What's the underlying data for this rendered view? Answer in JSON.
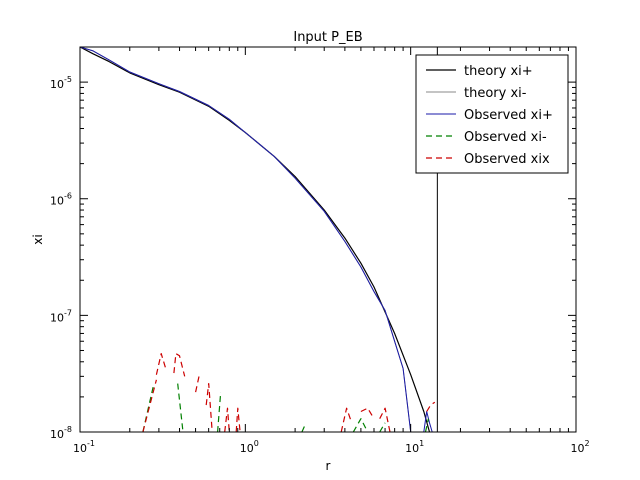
{
  "chart_data": {
    "type": "line",
    "title": "Input P_EB",
    "xlabel": "r",
    "ylabel": "xi",
    "xscale": "log",
    "yscale": "log",
    "xlim": [
      0.1,
      100
    ],
    "ylim": [
      1e-08,
      2e-05
    ],
    "grid": false,
    "legend_position": "top-right",
    "x_ticks": [
      {
        "base": "10",
        "exp": "-1",
        "value": 0.1
      },
      {
        "base": "10",
        "exp": "0",
        "value": 1
      },
      {
        "base": "10",
        "exp": "1",
        "value": 10
      },
      {
        "base": "10",
        "exp": "2",
        "value": 100
      }
    ],
    "y_ticks": [
      {
        "base": "10",
        "exp": "-8",
        "value": 1e-08
      },
      {
        "base": "10",
        "exp": "-7",
        "value": 1e-07
      },
      {
        "base": "10",
        "exp": "-6",
        "value": 1e-06
      },
      {
        "base": "10",
        "exp": "-5",
        "value": 1e-05
      }
    ],
    "vertical_line": {
      "x": 14.5,
      "color": "#000000"
    },
    "series": [
      {
        "name": "theory xi+",
        "color": "#000000",
        "style": "solid",
        "width": 1.2,
        "segments": [
          [
            [
              0.1,
              2e-05
            ],
            [
              0.12,
              1.75e-05
            ],
            [
              0.15,
              1.5e-05
            ],
            [
              0.2,
              1.2e-05
            ],
            [
              0.3,
              9.5e-06
            ],
            [
              0.4,
              8.2e-06
            ],
            [
              0.6,
              6.2e-06
            ],
            [
              0.8,
              4.7e-06
            ],
            [
              1.0,
              3.7e-06
            ],
            [
              1.5,
              2.3e-06
            ],
            [
              2.0,
              1.55e-06
            ],
            [
              3.0,
              8e-07
            ],
            [
              4.0,
              4.6e-07
            ],
            [
              5.0,
              2.8e-07
            ],
            [
              6.0,
              1.75e-07
            ],
            [
              8.0,
              7e-08
            ],
            [
              10.0,
              3.1e-08
            ],
            [
              12.0,
              1.5e-08
            ],
            [
              13.0,
              1e-08
            ]
          ]
        ]
      },
      {
        "name": "theory xi-",
        "color": "#888888",
        "style": "solid",
        "width": 1.0,
        "segments": [
          [
            [
              0.1,
              2e-05
            ],
            [
              0.12,
              1.85e-05
            ],
            [
              0.15,
              1.55e-05
            ],
            [
              0.2,
              1.22e-05
            ],
            [
              0.3,
              9.7e-06
            ],
            [
              0.4,
              8.3e-06
            ],
            [
              0.6,
              6.3e-06
            ],
            [
              0.8,
              4.8e-06
            ],
            [
              1.0,
              3.7e-06
            ],
            [
              1.5,
              2.3e-06
            ],
            [
              2.0,
              1.5e-06
            ],
            [
              3.0,
              7.8e-07
            ],
            [
              4.0,
              4.3e-07
            ],
            [
              5.0,
              2.6e-07
            ],
            [
              6.0,
              1.6e-07
            ],
            [
              7.0,
              1.1e-07
            ],
            [
              8.0,
              6e-08
            ],
            [
              9.0,
              3.5e-08
            ],
            [
              10.0,
              1e-08
            ]
          ]
        ]
      },
      {
        "name": "Observed xi+",
        "color": "#1a1aa8",
        "style": "solid",
        "width": 1.0,
        "segments": [
          [
            [
              0.1,
              2e-05
            ],
            [
              0.12,
              1.85e-05
            ],
            [
              0.15,
              1.55e-05
            ],
            [
              0.2,
              1.22e-05
            ],
            [
              0.3,
              9.7e-06
            ],
            [
              0.4,
              8.3e-06
            ],
            [
              0.6,
              6.3e-06
            ],
            [
              0.8,
              4.8e-06
            ],
            [
              1.0,
              3.7e-06
            ],
            [
              1.5,
              2.3e-06
            ],
            [
              2.0,
              1.5e-06
            ],
            [
              3.0,
              7.8e-07
            ],
            [
              4.0,
              4.3e-07
            ],
            [
              5.0,
              2.6e-07
            ],
            [
              6.0,
              1.6e-07
            ],
            [
              7.0,
              1.1e-07
            ],
            [
              8.0,
              6e-08
            ],
            [
              9.0,
              3.5e-08
            ],
            [
              10.0,
              1e-08
            ]
          ],
          [
            [
              12.0,
              1e-08
            ],
            [
              12.5,
              1.5e-08
            ],
            [
              13.0,
              1.2e-08
            ],
            [
              13.5,
              1e-08
            ]
          ]
        ]
      },
      {
        "name": "Observed xi-",
        "color": "#008000",
        "style": "dashed",
        "width": 1.2,
        "segments": [
          [
            [
              0.24,
              1e-08
            ],
            [
              0.28,
              2.6e-08
            ]
          ],
          [
            [
              0.39,
              2.6e-08
            ],
            [
              0.42,
              1e-08
            ]
          ],
          [
            [
              0.68,
              1e-08
            ],
            [
              0.71,
              2.2e-08
            ]
          ],
          [
            [
              2.2,
              1e-08
            ],
            [
              2.3,
              1.15e-08
            ]
          ],
          [
            [
              4.5,
              1e-08
            ],
            [
              5.0,
              1.3e-08
            ],
            [
              5.5,
              1e-08
            ]
          ],
          [
            [
              6.5,
              1e-08
            ],
            [
              7.0,
              1.2e-08
            ]
          ],
          [
            [
              12.3,
              1e-08
            ],
            [
              12.8,
              1.3e-08
            ]
          ]
        ]
      },
      {
        "name": "Observed xix",
        "color": "#cc0000",
        "style": "dashed",
        "width": 1.2,
        "segments": [
          [
            [
              0.24,
              1e-08
            ],
            [
              0.29,
              2.8e-08
            ]
          ],
          [
            [
              0.29,
              3.1e-08
            ],
            [
              0.31,
              4.7e-08
            ],
            [
              0.33,
              3.5e-08
            ]
          ],
          [
            [
              0.37,
              3.2e-08
            ],
            [
              0.38,
              4.7e-08
            ],
            [
              0.4,
              4.5e-08
            ],
            [
              0.43,
              3e-08
            ]
          ],
          [
            [
              0.5,
              2.2e-08
            ],
            [
              0.53,
              3.2e-08
            ]
          ],
          [
            [
              0.58,
              1.7e-08
            ],
            [
              0.6,
              2.6e-08
            ],
            [
              0.63,
              1e-08
            ]
          ],
          [
            [
              0.75,
              1e-08
            ],
            [
              0.78,
              1.6e-08
            ],
            [
              0.8,
              1e-08
            ]
          ],
          [
            [
              0.88,
              1e-08
            ],
            [
              0.9,
              1.6e-08
            ],
            [
              0.93,
              1e-08
            ]
          ],
          [
            [
              3.8,
              1e-08
            ],
            [
              4.1,
              1.6e-08
            ],
            [
              4.4,
              1.2e-08
            ]
          ],
          [
            [
              5.0,
              1.5e-08
            ],
            [
              5.5,
              1.6e-08
            ],
            [
              6.0,
              1.3e-08
            ]
          ],
          [
            [
              6.5,
              1.3e-08
            ],
            [
              7.0,
              1.6e-08
            ],
            [
              7.5,
              1e-08
            ]
          ],
          [
            [
              12.5,
              1.5e-08
            ],
            [
              13.2,
              1.7e-08
            ],
            [
              14.0,
              1.8e-08
            ]
          ]
        ]
      }
    ]
  }
}
